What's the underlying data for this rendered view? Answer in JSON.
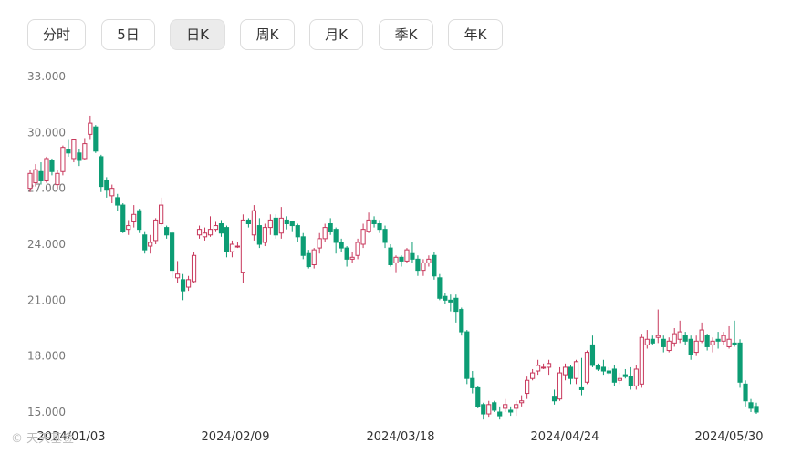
{
  "tabs": [
    {
      "label": "分时",
      "active": false
    },
    {
      "label": "5日",
      "active": false
    },
    {
      "label": "日K",
      "active": true
    },
    {
      "label": "周K",
      "active": false
    },
    {
      "label": "月K",
      "active": false
    },
    {
      "label": "季K",
      "active": false
    },
    {
      "label": "年K",
      "active": false
    }
  ],
  "colors": {
    "up": "#c8385c",
    "down": "#0d9d74"
  },
  "chart_data": {
    "type": "candlestick",
    "y_ticks": [
      "33.000",
      "30.000",
      "27.000",
      "24.000",
      "21.000",
      "18.000",
      "15.000"
    ],
    "x_ticks": [
      "2024/01/03",
      "2024/02/09",
      "2024/03/18",
      "2024/04/24",
      "2024/05/30"
    ],
    "ylim": [
      15,
      33
    ],
    "grid": false,
    "candles": [
      [
        27.0,
        27.8,
        26.8,
        28.0
      ],
      [
        27.3,
        28.0,
        27.1,
        28.3
      ],
      [
        27.9,
        27.4,
        27.2,
        28.4
      ],
      [
        27.4,
        28.6,
        27.3,
        28.7
      ],
      [
        28.5,
        27.9,
        27.7,
        28.6
      ],
      [
        27.2,
        27.8,
        27.0,
        28.0
      ],
      [
        27.9,
        29.2,
        27.7,
        29.3
      ],
      [
        29.1,
        28.9,
        28.7,
        29.6
      ],
      [
        28.6,
        29.6,
        28.4,
        29.6
      ],
      [
        28.9,
        28.5,
        28.2,
        29.1
      ],
      [
        28.6,
        29.4,
        28.5,
        29.7
      ],
      [
        29.9,
        30.5,
        29.6,
        30.9
      ],
      [
        30.3,
        29.0,
        28.9,
        30.4
      ],
      [
        28.7,
        27.1,
        26.8,
        28.8
      ],
      [
        27.4,
        26.9,
        26.5,
        27.6
      ],
      [
        26.6,
        27.0,
        26.2,
        27.2
      ],
      [
        26.5,
        26.1,
        25.8,
        26.7
      ],
      [
        26.1,
        24.7,
        24.6,
        26.2
      ],
      [
        24.8,
        25.0,
        24.5,
        25.3
      ],
      [
        25.2,
        25.6,
        24.9,
        26.1
      ],
      [
        25.8,
        24.8,
        24.6,
        25.9
      ],
      [
        24.5,
        23.7,
        23.5,
        24.7
      ],
      [
        23.9,
        24.1,
        23.5,
        24.5
      ],
      [
        24.2,
        25.3,
        24.0,
        25.4
      ],
      [
        25.1,
        26.1,
        25.0,
        26.5
      ],
      [
        24.9,
        24.5,
        24.3,
        25.0
      ],
      [
        24.6,
        22.6,
        22.2,
        24.7
      ],
      [
        22.2,
        22.4,
        21.9,
        23.1
      ],
      [
        22.1,
        21.5,
        21.0,
        22.4
      ],
      [
        21.7,
        22.1,
        21.5,
        22.3
      ],
      [
        22.0,
        23.4,
        21.9,
        23.6
      ],
      [
        24.5,
        24.8,
        24.3,
        25.0
      ],
      [
        24.4,
        24.6,
        24.2,
        24.9
      ],
      [
        24.5,
        24.8,
        24.4,
        25.5
      ],
      [
        24.8,
        25.0,
        24.7,
        25.2
      ],
      [
        25.1,
        24.6,
        24.4,
        25.3
      ],
      [
        24.9,
        23.6,
        23.3,
        25.0
      ],
      [
        23.6,
        24.0,
        23.3,
        24.2
      ],
      [
        23.9,
        23.9,
        23.8,
        24.1
      ],
      [
        22.5,
        25.3,
        21.9,
        25.6
      ],
      [
        25.3,
        25.1,
        24.9,
        25.4
      ],
      [
        24.5,
        25.8,
        24.2,
        26.1
      ],
      [
        25.0,
        24.0,
        23.8,
        25.4
      ],
      [
        24.1,
        24.9,
        23.9,
        25.1
      ],
      [
        24.9,
        25.3,
        24.5,
        25.6
      ],
      [
        25.4,
        24.5,
        24.3,
        25.6
      ],
      [
        24.6,
        25.4,
        24.3,
        26.0
      ],
      [
        25.3,
        25.1,
        24.8,
        25.5
      ],
      [
        25.2,
        25.0,
        24.7,
        25.2
      ],
      [
        25.0,
        24.4,
        24.1,
        25.1
      ],
      [
        24.4,
        23.4,
        23.2,
        24.6
      ],
      [
        23.5,
        22.8,
        22.7,
        23.7
      ],
      [
        22.9,
        23.7,
        22.7,
        23.8
      ],
      [
        23.8,
        24.3,
        23.5,
        24.6
      ],
      [
        24.3,
        24.9,
        24.1,
        25.1
      ],
      [
        25.1,
        24.7,
        24.5,
        25.4
      ],
      [
        24.8,
        24.1,
        23.5,
        24.9
      ],
      [
        24.1,
        23.8,
        23.6,
        24.3
      ],
      [
        23.8,
        23.2,
        22.8,
        23.9
      ],
      [
        23.2,
        23.3,
        23.0,
        23.6
      ],
      [
        23.4,
        24.1,
        23.2,
        24.3
      ],
      [
        24.0,
        24.8,
        23.8,
        25.1
      ],
      [
        24.7,
        25.3,
        24.6,
        25.7
      ],
      [
        25.3,
        25.1,
        24.9,
        25.5
      ],
      [
        25.1,
        24.8,
        24.6,
        25.3
      ],
      [
        24.8,
        24.1,
        23.8,
        25.0
      ],
      [
        23.8,
        22.9,
        22.8,
        24.0
      ],
      [
        23.0,
        23.3,
        22.5,
        23.4
      ],
      [
        23.3,
        23.1,
        22.8,
        23.4
      ],
      [
        23.1,
        23.7,
        23.0,
        23.8
      ],
      [
        23.5,
        23.2,
        23.0,
        24.1
      ],
      [
        23.2,
        22.6,
        22.3,
        23.4
      ],
      [
        22.6,
        23.0,
        22.3,
        23.2
      ],
      [
        23.0,
        23.2,
        22.8,
        23.4
      ],
      [
        23.4,
        22.3,
        22.1,
        23.6
      ],
      [
        22.2,
        21.1,
        21.0,
        22.4
      ],
      [
        21.2,
        21.0,
        20.8,
        21.4
      ],
      [
        21.0,
        20.9,
        20.4,
        21.3
      ],
      [
        21.1,
        20.4,
        19.8,
        21.3
      ],
      [
        20.5,
        19.3,
        19.1,
        20.6
      ],
      [
        19.3,
        16.8,
        16.5,
        19.4
      ],
      [
        16.8,
        16.3,
        16.0,
        17.2
      ],
      [
        16.3,
        15.3,
        15.2,
        16.4
      ],
      [
        15.4,
        14.9,
        14.6,
        15.5
      ],
      [
        14.9,
        15.4,
        14.7,
        15.6
      ],
      [
        15.5,
        15.1,
        15.0,
        15.6
      ],
      [
        15.0,
        14.8,
        14.6,
        15.3
      ],
      [
        15.2,
        15.4,
        15.0,
        15.7
      ],
      [
        15.1,
        15.0,
        14.8,
        15.3
      ],
      [
        15.2,
        15.4,
        14.8,
        15.6
      ],
      [
        15.5,
        15.6,
        15.3,
        15.9
      ],
      [
        16.0,
        16.7,
        15.7,
        16.9
      ],
      [
        16.8,
        17.1,
        16.7,
        17.3
      ],
      [
        17.2,
        17.5,
        17.0,
        17.8
      ],
      [
        17.4,
        17.4,
        17.3,
        17.6
      ],
      [
        17.4,
        17.6,
        17.0,
        17.8
      ],
      [
        15.8,
        15.6,
        15.4,
        16.2
      ],
      [
        15.7,
        17.1,
        15.6,
        17.4
      ],
      [
        17.0,
        17.4,
        16.7,
        17.6
      ],
      [
        17.4,
        16.8,
        16.5,
        17.5
      ],
      [
        16.8,
        17.7,
        16.5,
        17.8
      ],
      [
        16.3,
        16.2,
        15.9,
        17.9
      ],
      [
        16.6,
        18.2,
        16.5,
        18.3
      ],
      [
        18.6,
        17.5,
        17.4,
        19.1
      ],
      [
        17.5,
        17.3,
        17.2,
        17.6
      ],
      [
        17.4,
        17.2,
        17.0,
        17.8
      ],
      [
        17.2,
        17.1,
        17.0,
        17.4
      ],
      [
        17.3,
        16.6,
        16.4,
        17.5
      ],
      [
        16.7,
        16.8,
        16.5,
        17.1
      ],
      [
        17.0,
        16.9,
        16.8,
        17.3
      ],
      [
        16.9,
        16.4,
        16.2,
        17.4
      ],
      [
        16.4,
        17.3,
        16.2,
        17.5
      ],
      [
        16.5,
        19.0,
        16.3,
        19.2
      ],
      [
        18.6,
        18.9,
        18.4,
        19.4
      ],
      [
        18.9,
        18.7,
        18.6,
        19.1
      ],
      [
        19.0,
        19.1,
        18.7,
        20.5
      ],
      [
        18.9,
        18.5,
        18.2,
        19.1
      ],
      [
        18.3,
        18.8,
        18.2,
        19.0
      ],
      [
        18.7,
        19.2,
        18.5,
        19.5
      ],
      [
        18.9,
        19.3,
        18.7,
        19.9
      ],
      [
        19.1,
        18.8,
        18.6,
        19.3
      ],
      [
        18.9,
        18.1,
        17.8,
        19.1
      ],
      [
        18.2,
        18.8,
        18.0,
        19.1
      ],
      [
        18.8,
        19.4,
        18.7,
        19.8
      ],
      [
        19.1,
        18.5,
        18.3,
        19.2
      ],
      [
        18.6,
        18.8,
        18.2,
        19.0
      ],
      [
        18.9,
        18.8,
        18.4,
        19.3
      ],
      [
        18.8,
        19.1,
        18.6,
        19.3
      ],
      [
        18.5,
        18.9,
        18.4,
        19.6
      ],
      [
        18.7,
        18.6,
        18.5,
        19.9
      ],
      [
        18.7,
        16.6,
        16.3,
        18.9
      ],
      [
        16.5,
        15.6,
        15.3,
        16.7
      ],
      [
        15.5,
        15.2,
        15.0,
        15.7
      ],
      [
        15.3,
        15.0,
        14.9,
        15.5
      ]
    ]
  },
  "watermark": "© 天天基金"
}
